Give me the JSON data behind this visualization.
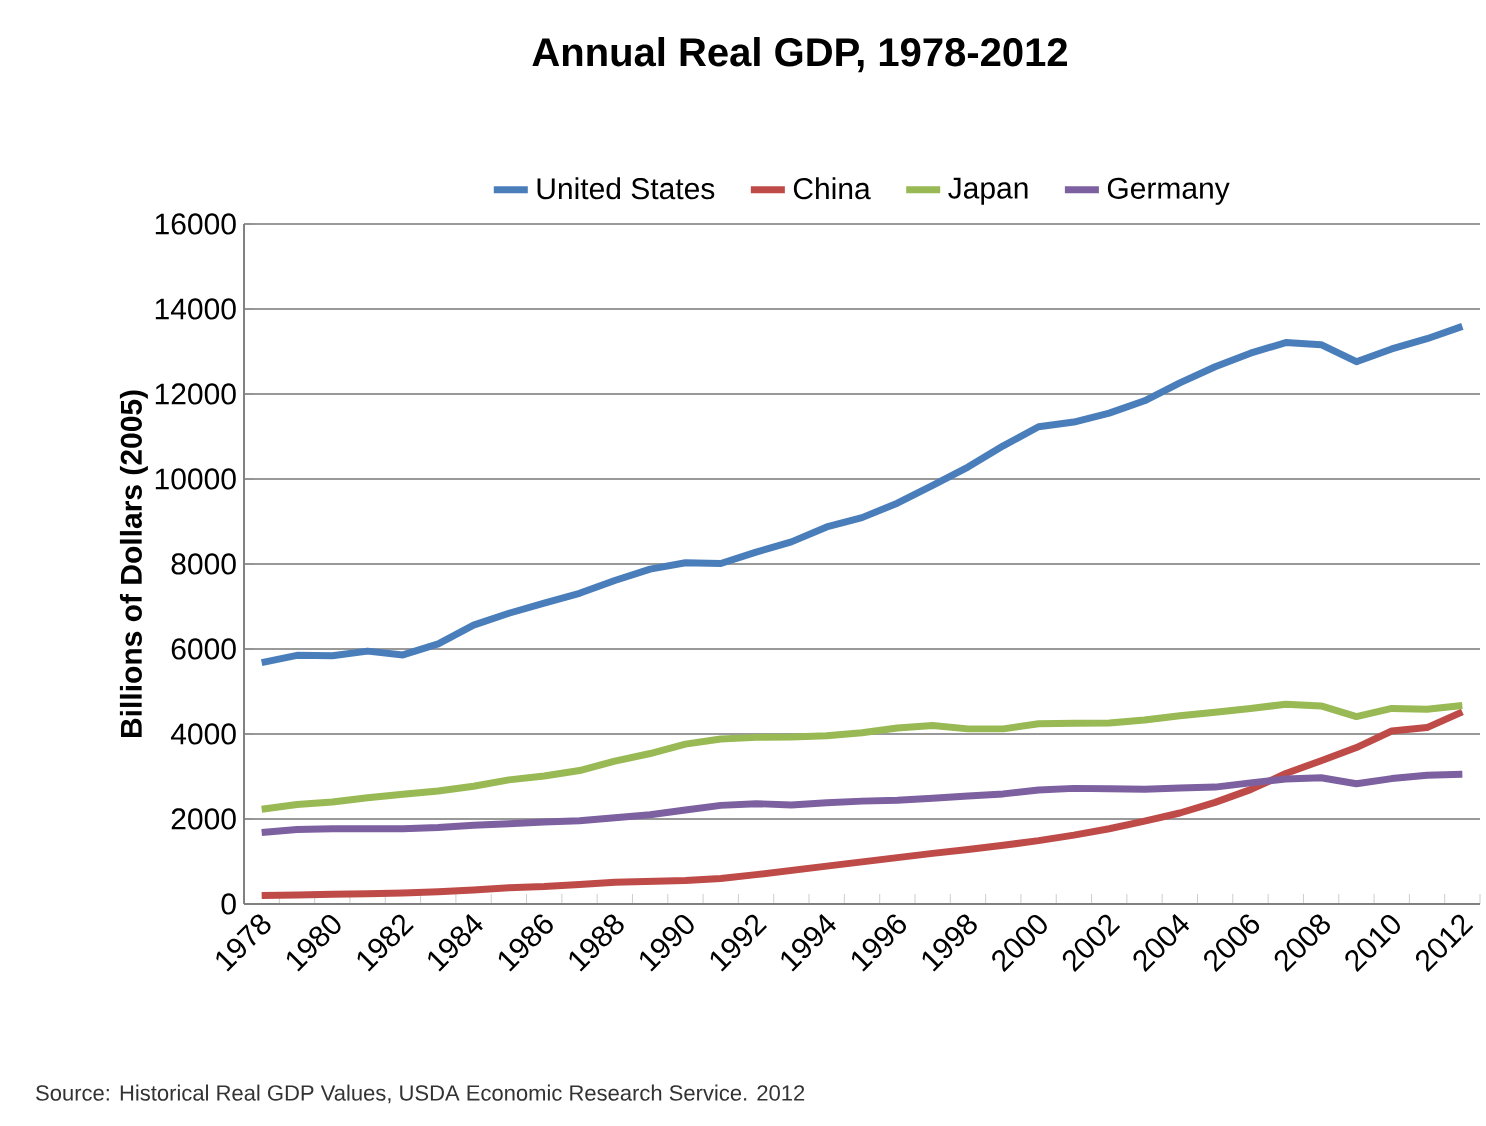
{
  "chart_data": {
    "type": "line",
    "title": "Annual Real GDP, 1978-2012",
    "ylabel": "Billions of Dollars (2005)",
    "categories": [
      "1978",
      null,
      "1980",
      null,
      "1982",
      null,
      "1984",
      null,
      "1986",
      null,
      "1988",
      null,
      "1990",
      null,
      "1992",
      null,
      "1994",
      null,
      "1996",
      null,
      "1998",
      null,
      "2000",
      null,
      "2002",
      null,
      "2004",
      null,
      "2006",
      null,
      "2008",
      null,
      "2010",
      null,
      "2012"
    ],
    "series": [
      {
        "name": "United States",
        "color": "#4a7ebb",
        "values": [
          5680,
          5850,
          5840,
          5950,
          5860,
          6120,
          6560,
          6840,
          7080,
          7310,
          7610,
          7880,
          8030,
          8010,
          8280,
          8520,
          8870,
          9090,
          9430,
          9850,
          10280,
          10780,
          11230,
          11340,
          11550,
          11840,
          12260,
          12640,
          12960,
          13210,
          13160,
          12760,
          13060,
          13300,
          13590
        ]
      },
      {
        "name": "China",
        "color": "#be4b48",
        "values": [
          200,
          210,
          230,
          240,
          260,
          290,
          330,
          380,
          410,
          460,
          510,
          530,
          550,
          600,
          690,
          790,
          890,
          990,
          1090,
          1190,
          1280,
          1380,
          1490,
          1620,
          1770,
          1950,
          2140,
          2390,
          2690,
          3070,
          3370,
          3680,
          4070,
          4150,
          4520
        ]
      },
      {
        "name": "Japan",
        "color": "#98b954",
        "values": [
          2230,
          2340,
          2400,
          2500,
          2580,
          2660,
          2770,
          2920,
          3010,
          3140,
          3360,
          3540,
          3760,
          3880,
          3920,
          3930,
          3960,
          4030,
          4140,
          4200,
          4120,
          4120,
          4240,
          4250,
          4260,
          4330,
          4430,
          4510,
          4600,
          4700,
          4660,
          4410,
          4600,
          4580,
          4670
        ]
      },
      {
        "name": "Germany",
        "color": "#7d60a0",
        "values": [
          1680,
          1750,
          1770,
          1770,
          1770,
          1800,
          1850,
          1890,
          1930,
          1960,
          2030,
          2100,
          2210,
          2320,
          2360,
          2330,
          2380,
          2420,
          2440,
          2490,
          2540,
          2590,
          2680,
          2720,
          2710,
          2700,
          2730,
          2750,
          2850,
          2940,
          2970,
          2830,
          2950,
          3030,
          3050
        ]
      }
    ],
    "ylim": [
      0,
      16000
    ],
    "yticks": [
      0,
      2000,
      4000,
      6000,
      8000,
      10000,
      12000,
      14000,
      16000
    ],
    "grid": "y",
    "legend": "top",
    "marker": "none",
    "line_style": "solid",
    "annotations": [
      "Source: Historical Real GDP Values, USDA Economic Research Service. 2012"
    ]
  }
}
